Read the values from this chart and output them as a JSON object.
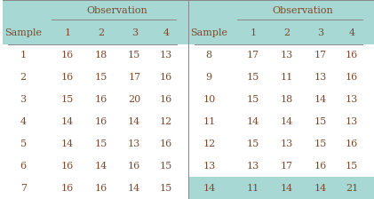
{
  "teal_color": "#a8d8d4",
  "white_color": "#ffffff",
  "text_color": "#7B4A2D",
  "line_color": "#888888",
  "left_table": {
    "observation_label": "Observation",
    "col_headers": [
      "Sample",
      "1",
      "2",
      "3",
      "4"
    ],
    "rows": [
      [
        "1",
        "16",
        "18",
        "15",
        "13"
      ],
      [
        "2",
        "16",
        "15",
        "17",
        "16"
      ],
      [
        "3",
        "15",
        "16",
        "20",
        "16"
      ],
      [
        "4",
        "14",
        "16",
        "14",
        "12"
      ],
      [
        "5",
        "14",
        "15",
        "13",
        "16"
      ],
      [
        "6",
        "16",
        "14",
        "16",
        "15"
      ],
      [
        "7",
        "16",
        "16",
        "14",
        "15"
      ]
    ]
  },
  "right_table": {
    "observation_label": "Observation",
    "col_headers": [
      "Sample",
      "1",
      "2",
      "3",
      "4"
    ],
    "rows": [
      [
        "8",
        "17",
        "13",
        "17",
        "16"
      ],
      [
        "9",
        "15",
        "11",
        "13",
        "16"
      ],
      [
        "10",
        "15",
        "18",
        "14",
        "13"
      ],
      [
        "11",
        "14",
        "14",
        "15",
        "13"
      ],
      [
        "12",
        "15",
        "13",
        "15",
        "16"
      ],
      [
        "13",
        "13",
        "17",
        "16",
        "15"
      ],
      [
        "14",
        "11",
        "14",
        "14",
        "21"
      ]
    ],
    "last_row_highlight": true
  },
  "figsize": [
    4.21,
    2.24
  ],
  "dpi": 100,
  "font_size": 8.0,
  "n_data_rows": 7,
  "n_header_rows": 2
}
